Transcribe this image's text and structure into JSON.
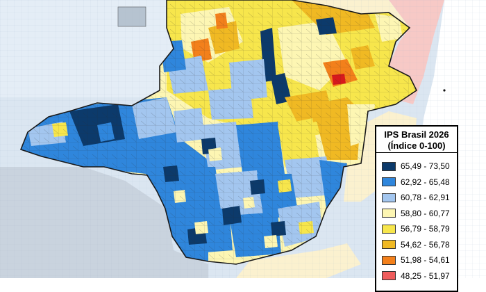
{
  "legend": {
    "title": "IPS Brasil 2026",
    "subtitle": "(Índice 0-100)",
    "items": [
      {
        "label": "65,49 - 73,50",
        "color": "#0c3a6b"
      },
      {
        "label": "62,92 - 65,48",
        "color": "#2f86dc"
      },
      {
        "label": "60,78 - 62,91",
        "color": "#a3c6ef"
      },
      {
        "label": "58,80 - 60,77",
        "color": "#fdf6b3"
      },
      {
        "label": "56,79 - 58,79",
        "color": "#f7e64c"
      },
      {
        "label": "54,62 - 56,78",
        "color": "#f0b923"
      },
      {
        "label": "51,98 - 54,61",
        "color": "#f3801b"
      },
      {
        "label": "48,25 - 51,97",
        "color": "#ef5c5c"
      }
    ]
  },
  "colors": {
    "background_region": "#dbe6f1",
    "background_light": "#eaf1f8",
    "sea_coast_pink": "#f7c9c6",
    "cream_region": "#fbf1cf",
    "highlight_red": "#d7191c",
    "outside_gray": "#c9d3de",
    "boundary": "#1a1a1a"
  }
}
